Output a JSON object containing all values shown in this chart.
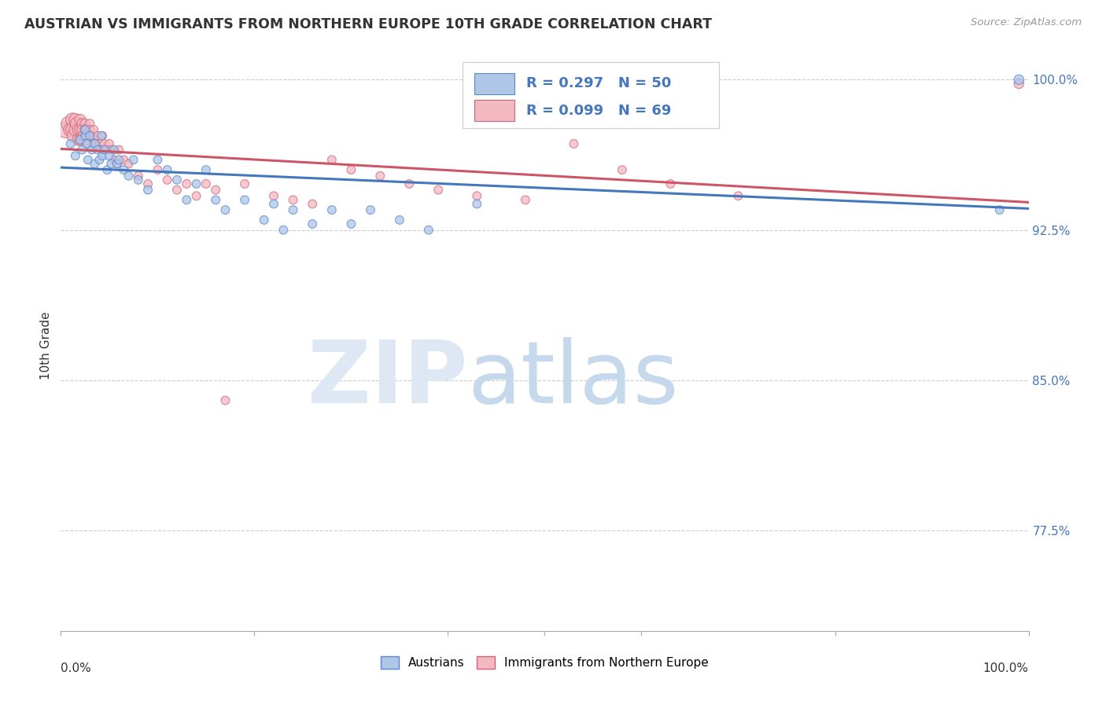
{
  "title": "AUSTRIAN VS IMMIGRANTS FROM NORTHERN EUROPE 10TH GRADE CORRELATION CHART",
  "source": "Source: ZipAtlas.com",
  "ylabel": "10th Grade",
  "ylim": [
    0.725,
    1.01
  ],
  "xlim": [
    0.0,
    1.0
  ],
  "ytick_vals": [
    0.775,
    0.85,
    0.925,
    1.0
  ],
  "ytick_labels": [
    "77.5%",
    "85.0%",
    "92.5%",
    "100.0%"
  ],
  "legend_label_blue": "Austrians",
  "legend_label_pink": "Immigrants from Northern Europe",
  "R_blue": 0.297,
  "N_blue": 50,
  "R_pink": 0.099,
  "N_pink": 69,
  "blue_color": "#aec6e8",
  "blue_edge_color": "#5588cc",
  "pink_color": "#f4b8c1",
  "pink_edge_color": "#cc6677",
  "blue_line_color": "#4477bb",
  "pink_line_color": "#cc5566",
  "blue_x": [
    0.01,
    0.015,
    0.02,
    0.022,
    0.025,
    0.025,
    0.027,
    0.028,
    0.03,
    0.032,
    0.035,
    0.035,
    0.038,
    0.04,
    0.042,
    0.043,
    0.045,
    0.048,
    0.05,
    0.052,
    0.055,
    0.058,
    0.06,
    0.065,
    0.07,
    0.075,
    0.08,
    0.09,
    0.1,
    0.11,
    0.12,
    0.13,
    0.14,
    0.15,
    0.16,
    0.17,
    0.19,
    0.21,
    0.22,
    0.23,
    0.24,
    0.26,
    0.28,
    0.3,
    0.32,
    0.35,
    0.38,
    0.43,
    0.97,
    0.99
  ],
  "blue_y": [
    0.968,
    0.962,
    0.97,
    0.965,
    0.972,
    0.975,
    0.968,
    0.96,
    0.972,
    0.965,
    0.968,
    0.958,
    0.965,
    0.96,
    0.972,
    0.962,
    0.965,
    0.955,
    0.962,
    0.958,
    0.965,
    0.958,
    0.96,
    0.955,
    0.952,
    0.96,
    0.95,
    0.945,
    0.96,
    0.955,
    0.95,
    0.94,
    0.948,
    0.955,
    0.94,
    0.935,
    0.94,
    0.93,
    0.938,
    0.925,
    0.935,
    0.928,
    0.935,
    0.928,
    0.935,
    0.93,
    0.925,
    0.938,
    0.935,
    1.0
  ],
  "blue_size": [
    60,
    60,
    60,
    60,
    60,
    60,
    60,
    60,
    60,
    60,
    60,
    60,
    60,
    60,
    60,
    60,
    60,
    60,
    60,
    60,
    60,
    60,
    60,
    60,
    60,
    60,
    60,
    60,
    60,
    60,
    60,
    60,
    60,
    60,
    60,
    60,
    60,
    60,
    60,
    60,
    60,
    60,
    60,
    60,
    60,
    60,
    60,
    60,
    60,
    80
  ],
  "pink_x": [
    0.005,
    0.008,
    0.01,
    0.012,
    0.012,
    0.013,
    0.015,
    0.015,
    0.016,
    0.018,
    0.018,
    0.02,
    0.02,
    0.02,
    0.022,
    0.022,
    0.023,
    0.025,
    0.025,
    0.026,
    0.027,
    0.028,
    0.028,
    0.03,
    0.03,
    0.032,
    0.033,
    0.034,
    0.035,
    0.036,
    0.038,
    0.04,
    0.042,
    0.043,
    0.045,
    0.047,
    0.05,
    0.052,
    0.055,
    0.058,
    0.06,
    0.065,
    0.07,
    0.08,
    0.09,
    0.1,
    0.11,
    0.12,
    0.13,
    0.14,
    0.15,
    0.16,
    0.17,
    0.19,
    0.22,
    0.24,
    0.26,
    0.28,
    0.3,
    0.33,
    0.36,
    0.39,
    0.43,
    0.48,
    0.53,
    0.58,
    0.63,
    0.7,
    0.99
  ],
  "pink_y": [
    0.975,
    0.978,
    0.975,
    0.98,
    0.975,
    0.972,
    0.98,
    0.975,
    0.978,
    0.975,
    0.97,
    0.98,
    0.975,
    0.97,
    0.978,
    0.975,
    0.972,
    0.978,
    0.975,
    0.97,
    0.975,
    0.972,
    0.968,
    0.978,
    0.975,
    0.972,
    0.968,
    0.975,
    0.97,
    0.968,
    0.972,
    0.968,
    0.965,
    0.972,
    0.968,
    0.965,
    0.968,
    0.965,
    0.96,
    0.958,
    0.965,
    0.96,
    0.958,
    0.952,
    0.948,
    0.955,
    0.95,
    0.945,
    0.948,
    0.942,
    0.948,
    0.945,
    0.84,
    0.948,
    0.942,
    0.94,
    0.938,
    0.96,
    0.955,
    0.952,
    0.948,
    0.945,
    0.942,
    0.94,
    0.968,
    0.955,
    0.948,
    0.942,
    0.998
  ],
  "pink_size": [
    220,
    180,
    160,
    150,
    150,
    140,
    130,
    130,
    120,
    110,
    110,
    100,
    100,
    100,
    90,
    90,
    85,
    80,
    80,
    75,
    75,
    70,
    70,
    65,
    65,
    62,
    60,
    60,
    60,
    60,
    60,
    60,
    60,
    60,
    60,
    60,
    60,
    60,
    60,
    60,
    60,
    60,
    60,
    60,
    60,
    60,
    60,
    60,
    60,
    60,
    60,
    60,
    60,
    60,
    60,
    60,
    60,
    60,
    60,
    60,
    60,
    60,
    60,
    60,
    60,
    60,
    60,
    60,
    80
  ]
}
